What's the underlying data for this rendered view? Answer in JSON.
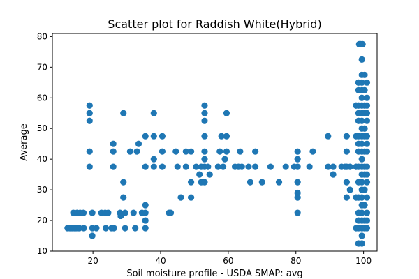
{
  "chart_data": {
    "type": "scatter",
    "title": "Scatter plot for Raddish White(Hybrid)",
    "xlabel": "Soil moisture profile - USDA SMAP: avg",
    "ylabel": "Average",
    "xlim": [
      8,
      104
    ],
    "ylim": [
      10,
      81
    ],
    "xticks": [
      20,
      40,
      60,
      80,
      100
    ],
    "yticks": [
      10,
      20,
      30,
      40,
      50,
      60,
      70,
      80
    ],
    "grid": false,
    "marker_color": "#1f77b4",
    "points": [
      [
        12.5,
        17.5
      ],
      [
        13.2,
        17.5
      ],
      [
        13.8,
        17.5
      ],
      [
        14.2,
        22.5
      ],
      [
        14.5,
        17.5
      ],
      [
        15.0,
        17.5
      ],
      [
        15.3,
        22.5
      ],
      [
        15.6,
        17.5
      ],
      [
        16.0,
        17.5
      ],
      [
        16.2,
        22.5
      ],
      [
        17.2,
        22.5
      ],
      [
        17.3,
        17.5
      ],
      [
        19.0,
        57.5
      ],
      [
        19.0,
        55.0
      ],
      [
        19.0,
        52.5
      ],
      [
        19.0,
        42.5
      ],
      [
        19.0,
        37.5
      ],
      [
        19.8,
        22.5
      ],
      [
        19.8,
        17.5
      ],
      [
        19.8,
        15.0
      ],
      [
        21.0,
        17.5
      ],
      [
        22.5,
        22.5
      ],
      [
        23.6,
        22.5
      ],
      [
        23.8,
        17.5
      ],
      [
        24.5,
        22.5
      ],
      [
        25.5,
        17.5
      ],
      [
        26.0,
        45.0
      ],
      [
        26.0,
        42.5
      ],
      [
        26.0,
        37.5
      ],
      [
        26.2,
        17.5
      ],
      [
        28.0,
        22.5
      ],
      [
        28.2,
        21.5
      ],
      [
        28.5,
        22.0
      ],
      [
        29.0,
        55.0
      ],
      [
        29.0,
        32.5
      ],
      [
        29.0,
        27.5
      ],
      [
        29.5,
        22.5
      ],
      [
        29.5,
        17.5
      ],
      [
        31.0,
        42.5
      ],
      [
        32.0,
        22.5
      ],
      [
        32.5,
        17.5
      ],
      [
        33.0,
        42.5
      ],
      [
        33.5,
        45.0
      ],
      [
        34.5,
        22.5
      ],
      [
        35.5,
        47.5
      ],
      [
        35.5,
        37.5
      ],
      [
        35.5,
        25.0
      ],
      [
        35.5,
        22.5
      ],
      [
        35.5,
        20.0
      ],
      [
        35.5,
        17.5
      ],
      [
        38.0,
        55.0
      ],
      [
        38.0,
        47.5
      ],
      [
        38.0,
        40.0
      ],
      [
        38.0,
        37.5
      ],
      [
        40.5,
        47.5
      ],
      [
        40.5,
        42.5
      ],
      [
        40.5,
        37.5
      ],
      [
        42.5,
        22.5
      ],
      [
        43.0,
        22.5
      ],
      [
        44.5,
        42.5
      ],
      [
        45.0,
        37.5
      ],
      [
        46.0,
        27.5
      ],
      [
        47.5,
        42.5
      ],
      [
        47.5,
        37.5
      ],
      [
        49.0,
        42.5
      ],
      [
        49.0,
        32.5
      ],
      [
        49.0,
        27.5
      ],
      [
        50.5,
        37.5
      ],
      [
        51.5,
        35.0
      ],
      [
        52.0,
        37.5
      ],
      [
        52.0,
        32.5
      ],
      [
        53.0,
        57.5
      ],
      [
        53.0,
        55.0
      ],
      [
        53.0,
        52.5
      ],
      [
        53.0,
        47.5
      ],
      [
        53.0,
        42.5
      ],
      [
        53.0,
        40.0
      ],
      [
        53.0,
        37.5
      ],
      [
        53.0,
        32.5
      ],
      [
        54.0,
        37.5
      ],
      [
        54.5,
        35.0
      ],
      [
        57.0,
        37.5
      ],
      [
        57.5,
        42.5
      ],
      [
        58.0,
        47.5
      ],
      [
        58.5,
        37.5
      ],
      [
        59.0,
        40.0
      ],
      [
        59.5,
        55.0
      ],
      [
        59.5,
        47.5
      ],
      [
        59.5,
        42.5
      ],
      [
        62.0,
        37.5
      ],
      [
        63.0,
        37.5
      ],
      [
        63.5,
        42.5
      ],
      [
        64.0,
        37.5
      ],
      [
        66.0,
        37.5
      ],
      [
        66.5,
        32.5
      ],
      [
        68.0,
        42.5
      ],
      [
        68.0,
        37.5
      ],
      [
        70.0,
        32.5
      ],
      [
        72.5,
        37.5
      ],
      [
        75.0,
        32.5
      ],
      [
        77.0,
        37.5
      ],
      [
        79.5,
        37.5
      ],
      [
        80.5,
        42.5
      ],
      [
        80.5,
        40.0
      ],
      [
        80.5,
        37.5
      ],
      [
        80.5,
        32.5
      ],
      [
        80.5,
        29.0
      ],
      [
        80.5,
        27.5
      ],
      [
        80.5,
        22.5
      ],
      [
        84.0,
        37.5
      ],
      [
        85.0,
        42.5
      ],
      [
        89.5,
        47.5
      ],
      [
        89.5,
        37.5
      ],
      [
        91.0,
        37.5
      ],
      [
        91.0,
        35.0
      ],
      [
        93.5,
        37.5
      ],
      [
        94.5,
        37.5
      ],
      [
        95.0,
        47.5
      ],
      [
        95.0,
        42.5
      ],
      [
        95.0,
        37.5
      ],
      [
        95.0,
        32.5
      ],
      [
        95.0,
        27.5
      ],
      [
        96.0,
        30.0
      ],
      [
        96.0,
        37.5
      ],
      [
        98.7,
        77.5
      ],
      [
        99.2,
        77.5
      ],
      [
        99.7,
        77.5
      ],
      [
        99.5,
        72.5
      ],
      [
        99.5,
        67.5
      ],
      [
        99.5,
        65.0
      ],
      [
        99.5,
        62.5
      ],
      [
        99.5,
        60.0
      ],
      [
        99.5,
        57.5
      ],
      [
        99.5,
        55.0
      ],
      [
        99.5,
        52.5
      ],
      [
        99.5,
        50.0
      ],
      [
        99.5,
        47.5
      ],
      [
        99.5,
        45.0
      ],
      [
        99.5,
        42.5
      ],
      [
        99.5,
        40.0
      ],
      [
        99.5,
        37.5
      ],
      [
        99.5,
        35.0
      ],
      [
        99.5,
        32.5
      ],
      [
        99.5,
        30.0
      ],
      [
        99.5,
        27.5
      ],
      [
        99.5,
        25.0
      ],
      [
        99.5,
        22.5
      ],
      [
        99.5,
        20.0
      ],
      [
        99.5,
        17.5
      ],
      [
        99.5,
        15.0
      ],
      [
        99.5,
        12.5
      ],
      [
        98.5,
        65.0
      ],
      [
        98.5,
        62.5
      ],
      [
        98.5,
        57.5
      ],
      [
        98.5,
        55.0
      ],
      [
        98.5,
        52.5
      ],
      [
        98.5,
        47.5
      ],
      [
        98.5,
        45.0
      ],
      [
        98.5,
        42.5
      ],
      [
        98.5,
        37.5
      ],
      [
        98.5,
        32.5
      ],
      [
        98.5,
        27.5
      ],
      [
        98.5,
        22.5
      ],
      [
        98.5,
        20.0
      ],
      [
        98.5,
        17.5
      ],
      [
        98.5,
        12.5
      ],
      [
        100.3,
        67.5
      ],
      [
        100.3,
        62.5
      ],
      [
        100.3,
        57.5
      ],
      [
        100.3,
        55.0
      ],
      [
        100.3,
        50.0
      ],
      [
        100.3,
        47.5
      ],
      [
        100.3,
        42.5
      ],
      [
        100.3,
        37.5
      ],
      [
        100.3,
        35.0
      ],
      [
        100.3,
        30.0
      ],
      [
        100.3,
        25.0
      ],
      [
        100.3,
        20.0
      ],
      [
        100.3,
        17.5
      ],
      [
        101.0,
        65.0
      ],
      [
        101.0,
        60.0
      ],
      [
        101.0,
        57.5
      ],
      [
        101.0,
        55.0
      ],
      [
        101.0,
        52.5
      ],
      [
        101.0,
        47.5
      ],
      [
        101.0,
        45.0
      ],
      [
        101.0,
        42.5
      ],
      [
        101.0,
        37.5
      ],
      [
        101.0,
        35.0
      ],
      [
        101.0,
        32.5
      ],
      [
        101.0,
        27.5
      ],
      [
        101.0,
        22.5
      ],
      [
        101.0,
        20.0
      ],
      [
        101.0,
        17.5
      ],
      [
        97.8,
        57.5
      ],
      [
        97.8,
        47.5
      ],
      [
        97.8,
        37.5
      ],
      [
        97.8,
        27.5
      ],
      [
        97.8,
        17.5
      ]
    ]
  }
}
